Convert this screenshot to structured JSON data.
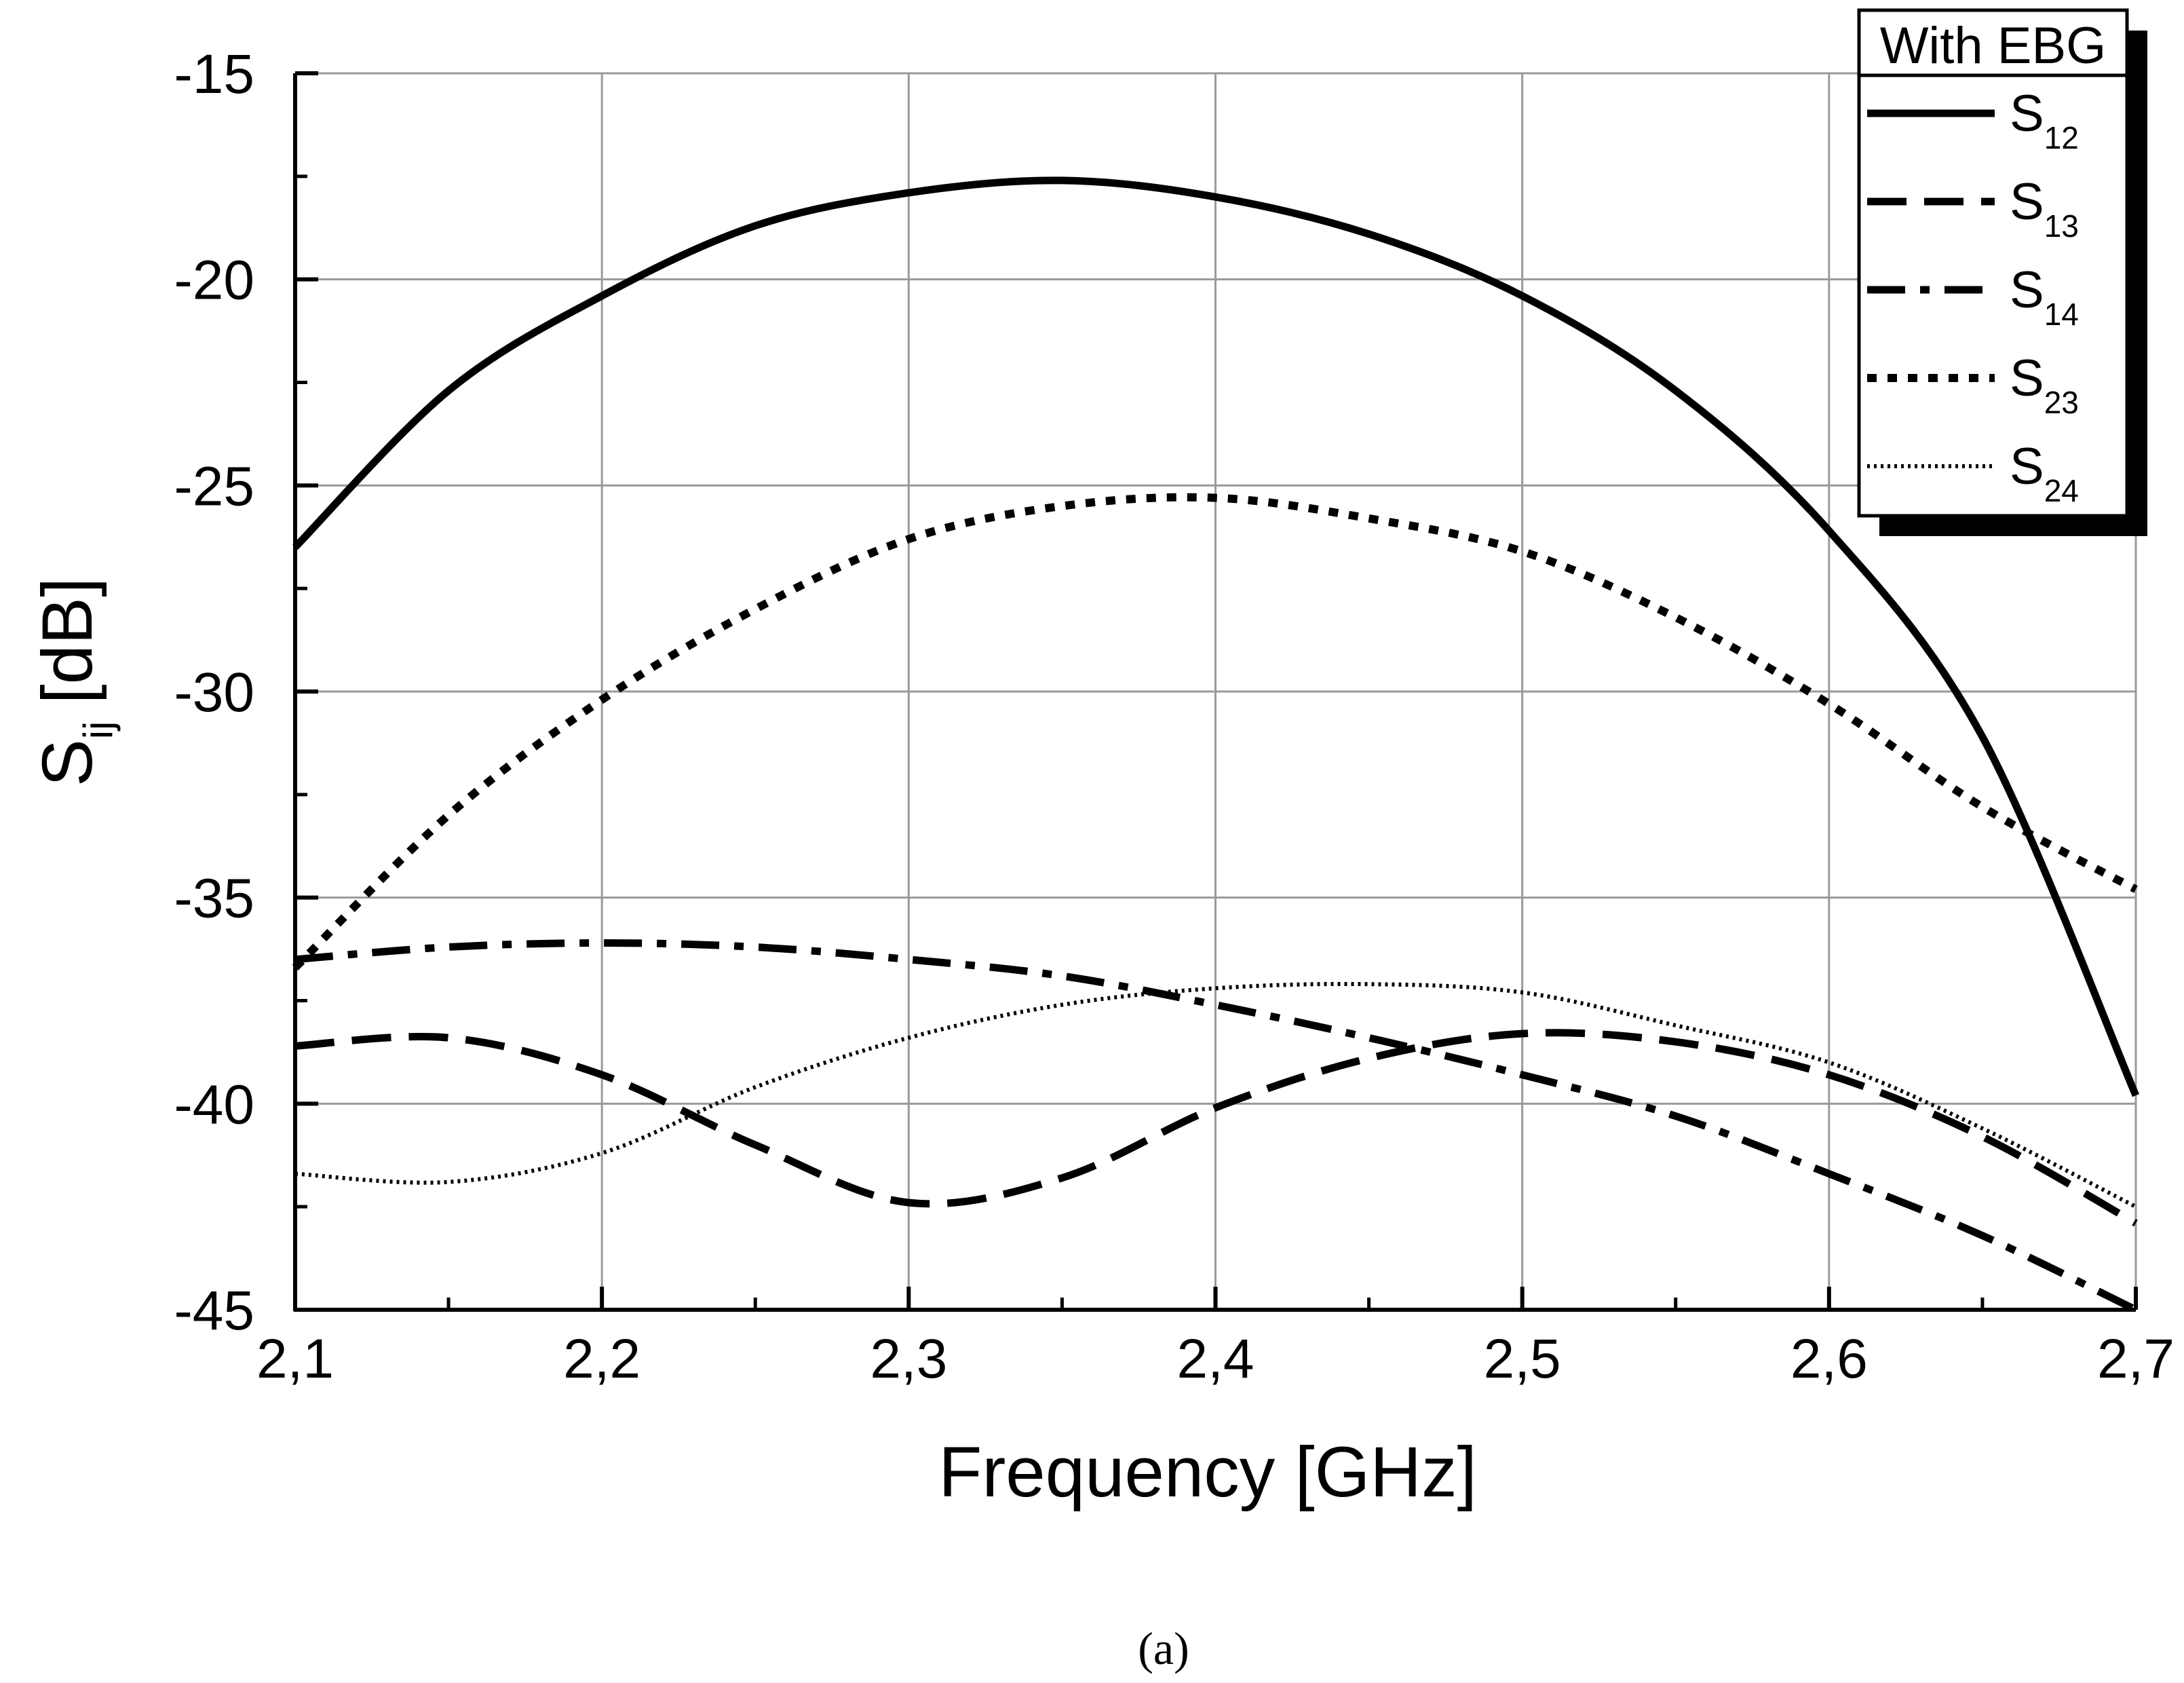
{
  "chart_data": {
    "type": "line",
    "title": "",
    "xlabel": "Frequency [GHz]",
    "ylabel_main": "S",
    "ylabel_sub": "ij",
    "ylabel_unit": "[dB]",
    "xlim": [
      2.1,
      2.7
    ],
    "ylim": [
      -45,
      -15
    ],
    "x_ticks": [
      2.1,
      2.2,
      2.3,
      2.4,
      2.5,
      2.6,
      2.7
    ],
    "x_tick_labels": [
      "2,1",
      "2,2",
      "2,3",
      "2,4",
      "2,5",
      "2,6",
      "2,7"
    ],
    "y_ticks": [
      -45,
      -40,
      -35,
      -30,
      -25,
      -20,
      -15
    ],
    "y_tick_labels": [
      "-45",
      "-40",
      "-35",
      "-30",
      "-25",
      "-20",
      "-15"
    ],
    "grid": true,
    "legend_title": "With  EBG",
    "legend_position": "top-right",
    "caption": "(a)",
    "x": [
      2.1,
      2.15,
      2.2,
      2.25,
      2.3,
      2.35,
      2.4,
      2.45,
      2.5,
      2.55,
      2.6,
      2.65,
      2.7
    ],
    "series": [
      {
        "name": "S",
        "sub": "12",
        "style": "solid",
        "values": [
          -26.5,
          -22.7,
          -20.4,
          -18.7,
          -17.9,
          -17.6,
          -18.0,
          -18.9,
          -20.4,
          -22.7,
          -26.1,
          -31.1,
          -39.8
        ]
      },
      {
        "name": "S",
        "sub": "13",
        "style": "dashed",
        "values": [
          -38.6,
          -38.4,
          -39.3,
          -41.0,
          -42.4,
          -41.8,
          -40.1,
          -38.9,
          -38.3,
          -38.5,
          -39.3,
          -40.8,
          -42.9
        ]
      },
      {
        "name": "S",
        "sub": "14",
        "style": "dashdot",
        "values": [
          -36.5,
          -36.2,
          -36.1,
          -36.2,
          -36.5,
          -36.9,
          -37.6,
          -38.4,
          -39.3,
          -40.3,
          -41.7,
          -43.2,
          -45.0
        ]
      },
      {
        "name": "S",
        "sub": "23",
        "style": "dotted",
        "values": [
          -36.7,
          -33.0,
          -30.2,
          -28.0,
          -26.3,
          -25.5,
          -25.3,
          -25.8,
          -26.6,
          -28.2,
          -30.3,
          -32.8,
          -34.8
        ]
      },
      {
        "name": "S",
        "sub": "24",
        "style": "finedotted",
        "values": [
          -41.7,
          -41.9,
          -41.2,
          -39.6,
          -38.4,
          -37.6,
          -37.2,
          -37.1,
          -37.3,
          -38.1,
          -39.0,
          -40.6,
          -42.5
        ]
      }
    ]
  },
  "colors": {
    "line": "#000000",
    "grid": "#9a9a9a",
    "background": "#ffffff"
  }
}
